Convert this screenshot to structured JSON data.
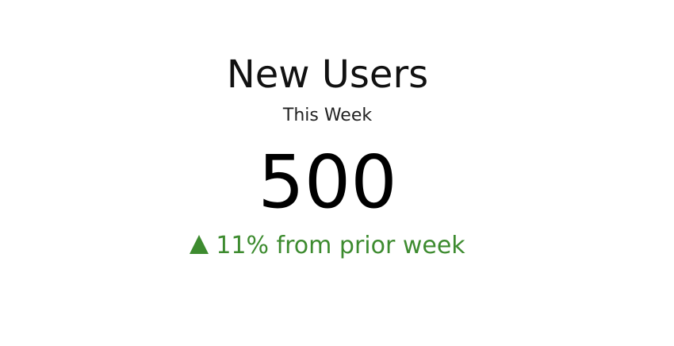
{
  "kpi": {
    "title": "New Users",
    "subtitle": "This Week",
    "value": "500",
    "change": {
      "text": "11% from prior week",
      "direction": "up",
      "icon": "triangle-up-icon",
      "color": "#3d8b2f"
    }
  }
}
